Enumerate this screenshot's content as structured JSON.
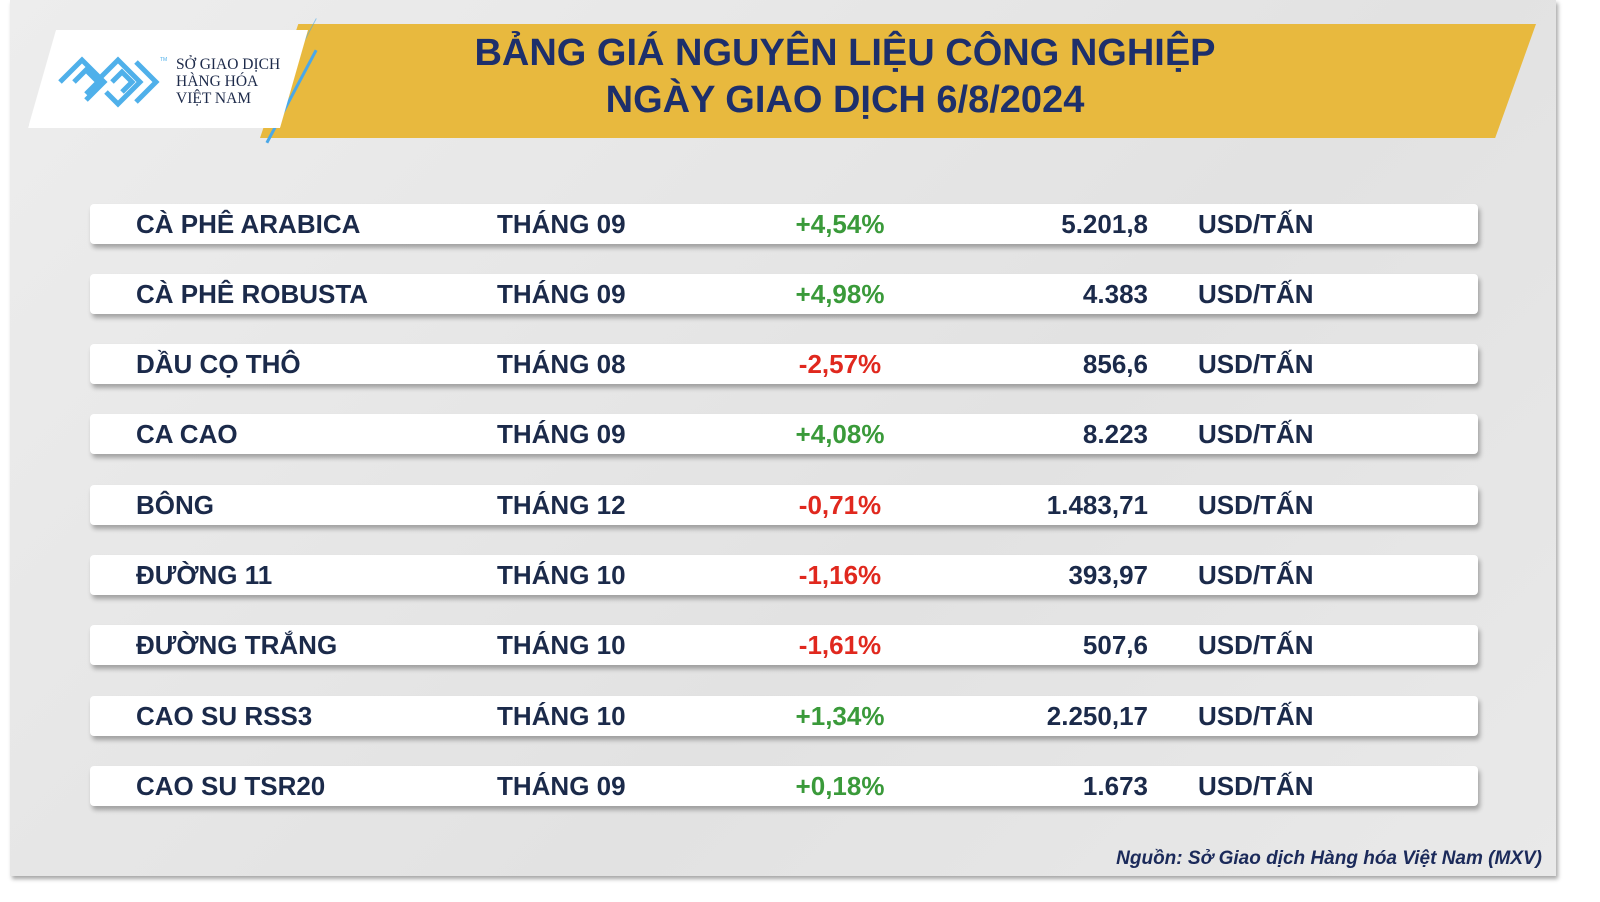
{
  "logo": {
    "lines": [
      "SỞ GIAO DỊCH",
      "HÀNG HÓA",
      "VIỆT NAM"
    ],
    "tm": "TM"
  },
  "title": {
    "line1": "BẢNG GIÁ NGUYÊN LIỆU CÔNG NGHIỆP",
    "line2": "NGÀY GIAO DỊCH 6/8/2024"
  },
  "colors": {
    "up": "#3a9a3a",
    "down": "#e0281e",
    "banner": "#e8b93e",
    "text": "#1b2a4a"
  },
  "rows": [
    {
      "name": "CÀ PHÊ ARABICA",
      "month": "THÁNG 09",
      "change": "+4,54%",
      "price": "5.201,8",
      "unit": "USD/TẤN",
      "dir": "up"
    },
    {
      "name": "CÀ PHÊ ROBUSTA",
      "month": "THÁNG 09",
      "change": "+4,98%",
      "price": "4.383",
      "unit": "USD/TẤN",
      "dir": "up"
    },
    {
      "name": "DẦU CỌ THÔ",
      "month": "THÁNG 08",
      "change": "-2,57%",
      "price": "856,6",
      "unit": "USD/TẤN",
      "dir": "down"
    },
    {
      "name": "CA CAO",
      "month": "THÁNG 09",
      "change": "+4,08%",
      "price": "8.223",
      "unit": "USD/TẤN",
      "dir": "up"
    },
    {
      "name": "BÔNG",
      "month": "THÁNG 12",
      "change": "-0,71%",
      "price": "1.483,71",
      "unit": "USD/TẤN",
      "dir": "down"
    },
    {
      "name": "ĐƯỜNG 11",
      "month": "THÁNG 10",
      "change": "-1,16%",
      "price": "393,97",
      "unit": "USD/TẤN",
      "dir": "down"
    },
    {
      "name": "ĐƯỜNG TRẮNG",
      "month": "THÁNG 10",
      "change": "-1,61%",
      "price": "507,6",
      "unit": "USD/TẤN",
      "dir": "down"
    },
    {
      "name": "CAO SU RSS3",
      "month": "THÁNG 10",
      "change": "+1,34%",
      "price": "2.250,17",
      "unit": "USD/TẤN",
      "dir": "up"
    },
    {
      "name": "CAO SU TSR20",
      "month": "THÁNG 09",
      "change": "+0,18%",
      "price": "1.673",
      "unit": "USD/TẤN",
      "dir": "up"
    }
  ],
  "source": "Nguồn: Sở Giao dịch Hàng hóa Việt Nam (MXV)"
}
